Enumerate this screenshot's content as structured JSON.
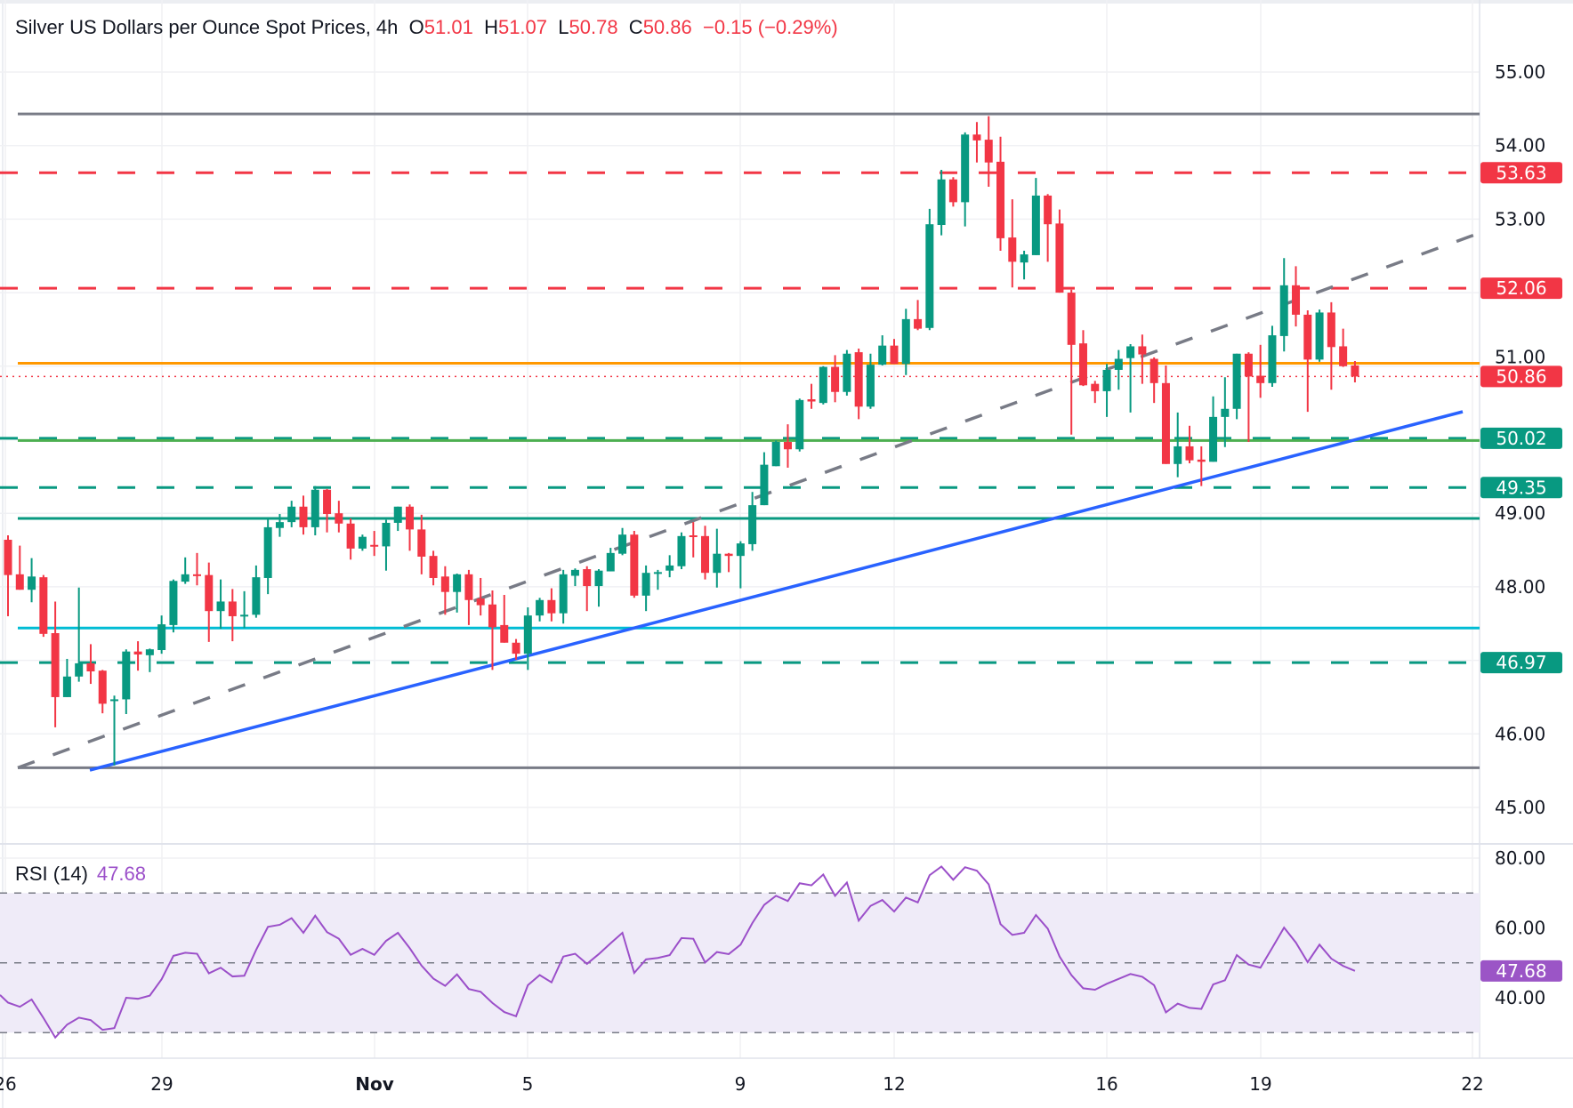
{
  "header": {
    "title": "Silver US Dollars per Ounce Spot Prices, 4h",
    "o_label": "O",
    "o_value": "51.01",
    "h_label": "H",
    "h_value": "51.07",
    "l_label": "L",
    "l_value": "50.78",
    "c_label": "C",
    "c_value": "50.86",
    "change": "−0.15 (−0.29%)"
  },
  "rsi_header": {
    "label": "RSI (14)",
    "value": "47.68"
  },
  "colors": {
    "up": "#089981",
    "down": "#f23645",
    "rsi": "#9b4fc9",
    "rsi_band": "#efebf8",
    "grid": "#f0f1f4",
    "level_gray": "#787b86",
    "orange": "#ff9800",
    "green": "#4caf50",
    "cyan": "#00bcd4",
    "blue": "#2962ff",
    "teal": "#089981"
  },
  "price_axis": [
    "55.00",
    "54.00",
    "53.00",
    "51.00",
    "49.00",
    "48.00",
    "46.00",
    "45.00"
  ],
  "rsi_axis": [
    "80.00",
    "60.00",
    "40.00"
  ],
  "time_axis": [
    "26",
    "29",
    "Nov",
    "5",
    "9",
    "12",
    "16",
    "19",
    "22"
  ],
  "badges": [
    {
      "text": "53.63",
      "color": "#f23645"
    },
    {
      "text": "52.06",
      "color": "#f23645"
    },
    {
      "text": "50.86",
      "color": "#f23645"
    },
    {
      "text": "50.02",
      "color": "#089981"
    },
    {
      "text": "49.35",
      "color": "#089981"
    },
    {
      "text": "46.97",
      "color": "#089981"
    }
  ],
  "rsi_badge": {
    "text": "47.68",
    "color": "#9b55c6"
  },
  "levels": [
    {
      "price": 54.43,
      "color": "#787b86",
      "style": "solid"
    },
    {
      "price": 53.63,
      "color": "#f23645",
      "style": "dashed"
    },
    {
      "price": 52.06,
      "color": "#f23645",
      "style": "dashed"
    },
    {
      "price": 51.04,
      "color": "#ff9800",
      "style": "solid"
    },
    {
      "price": 50.86,
      "color": "#f23645",
      "style": "dotted"
    },
    {
      "price": 50.02,
      "color": "#089981",
      "style": "dashed"
    },
    {
      "price": 49.99,
      "color": "#4caf50",
      "style": "solid"
    },
    {
      "price": 49.35,
      "color": "#089981",
      "style": "dashed"
    },
    {
      "price": 48.93,
      "color": "#089981",
      "style": "solid"
    },
    {
      "price": 47.44,
      "color": "#00bcd4",
      "style": "solid"
    },
    {
      "price": 46.97,
      "color": "#089981",
      "style": "dashed"
    },
    {
      "price": 45.54,
      "color": "#787b86",
      "style": "solid"
    }
  ],
  "rsi_levels": [
    70,
    50,
    30
  ],
  "chart_data": {
    "type": "candlestick",
    "title": "Silver US Dollars per Ounce Spot Prices, 4h",
    "ylim": [
      44.5,
      55.5
    ],
    "rsi_ylim": [
      25,
      82
    ],
    "grid": true,
    "ohlc": [
      [
        48.64,
        48.7,
        47.6,
        48.16
      ],
      [
        48.17,
        48.56,
        47.96,
        47.96
      ],
      [
        47.96,
        48.39,
        47.79,
        48.14
      ],
      [
        48.13,
        48.16,
        47.32,
        47.36
      ],
      [
        47.37,
        47.8,
        46.09,
        46.5
      ],
      [
        46.5,
        47.02,
        46.5,
        46.78
      ],
      [
        46.78,
        47.99,
        46.71,
        46.96
      ],
      [
        46.96,
        47.22,
        46.68,
        46.85
      ],
      [
        46.86,
        46.87,
        46.28,
        46.41
      ],
      [
        46.45,
        46.52,
        45.57,
        46.47
      ],
      [
        46.47,
        47.15,
        46.27,
        47.12
      ],
      [
        47.12,
        47.26,
        46.86,
        47.08
      ],
      [
        47.07,
        47.16,
        46.84,
        47.15
      ],
      [
        47.14,
        47.61,
        47.09,
        47.49
      ],
      [
        47.48,
        48.1,
        47.38,
        48.08
      ],
      [
        48.07,
        48.4,
        48.04,
        48.17
      ],
      [
        48.17,
        48.46,
        48.02,
        48.16
      ],
      [
        48.16,
        48.33,
        47.25,
        47.67
      ],
      [
        47.67,
        48.1,
        47.43,
        47.8
      ],
      [
        47.8,
        47.97,
        47.26,
        47.6
      ],
      [
        47.6,
        47.94,
        47.44,
        47.62
      ],
      [
        47.62,
        48.29,
        47.58,
        48.13
      ],
      [
        48.12,
        48.93,
        47.9,
        48.81
      ],
      [
        48.8,
        48.99,
        48.68,
        48.88
      ],
      [
        48.88,
        49.17,
        48.81,
        49.09
      ],
      [
        49.09,
        49.24,
        48.71,
        48.81
      ],
      [
        48.81,
        49.37,
        48.7,
        49.32
      ],
      [
        49.32,
        49.33,
        48.74,
        48.99
      ],
      [
        49.0,
        49.17,
        48.74,
        48.86
      ],
      [
        48.86,
        48.93,
        48.37,
        48.52
      ],
      [
        48.52,
        48.71,
        48.49,
        48.68
      ],
      [
        48.57,
        48.76,
        48.42,
        48.55
      ],
      [
        48.55,
        48.91,
        48.22,
        48.87
      ],
      [
        48.87,
        49.09,
        48.76,
        49.09
      ],
      [
        49.09,
        49.12,
        48.49,
        48.78
      ],
      [
        48.78,
        48.98,
        48.17,
        48.41
      ],
      [
        48.42,
        48.49,
        48.02,
        48.12
      ],
      [
        48.14,
        48.28,
        47.62,
        47.93
      ],
      [
        47.93,
        48.18,
        47.65,
        48.17
      ],
      [
        48.17,
        48.23,
        47.48,
        47.82
      ],
      [
        47.84,
        48.12,
        47.61,
        47.75
      ],
      [
        47.76,
        47.95,
        46.87,
        47.45
      ],
      [
        47.48,
        47.89,
        47.24,
        47.24
      ],
      [
        47.24,
        47.29,
        47.01,
        47.09
      ],
      [
        47.09,
        47.72,
        46.87,
        47.61
      ],
      [
        47.61,
        47.85,
        47.53,
        47.82
      ],
      [
        47.82,
        47.98,
        47.53,
        47.64
      ],
      [
        47.64,
        48.23,
        47.5,
        48.17
      ],
      [
        48.15,
        48.25,
        48.01,
        48.23
      ],
      [
        48.24,
        48.28,
        47.67,
        48.01
      ],
      [
        48.01,
        48.24,
        47.73,
        48.22
      ],
      [
        48.21,
        48.53,
        48.21,
        48.46
      ],
      [
        48.45,
        48.8,
        48.43,
        48.71
      ],
      [
        48.71,
        48.76,
        47.85,
        47.88
      ],
      [
        47.88,
        48.29,
        47.67,
        48.19
      ],
      [
        48.18,
        48.23,
        47.96,
        48.2
      ],
      [
        48.22,
        48.43,
        48.13,
        48.29
      ],
      [
        48.28,
        48.74,
        48.24,
        48.69
      ],
      [
        48.7,
        48.88,
        48.4,
        48.68
      ],
      [
        48.69,
        48.83,
        48.1,
        48.19
      ],
      [
        48.19,
        48.79,
        47.99,
        48.45
      ],
      [
        48.45,
        48.46,
        48.2,
        48.42
      ],
      [
        48.42,
        48.62,
        47.98,
        48.59
      ],
      [
        48.58,
        49.29,
        48.49,
        49.11
      ],
      [
        49.11,
        49.83,
        49.11,
        49.66
      ],
      [
        49.64,
        49.99,
        49.64,
        49.97
      ],
      [
        49.97,
        50.21,
        49.62,
        49.87
      ],
      [
        49.87,
        50.56,
        49.84,
        50.54
      ],
      [
        50.55,
        50.76,
        50.42,
        50.52
      ],
      [
        50.5,
        51.0,
        50.48,
        50.99
      ],
      [
        50.99,
        51.15,
        50.51,
        50.65
      ],
      [
        50.65,
        51.22,
        50.6,
        51.17
      ],
      [
        51.19,
        51.24,
        50.28,
        50.45
      ],
      [
        50.45,
        51.17,
        50.42,
        51.02
      ],
      [
        51.02,
        51.42,
        51.01,
        51.28
      ],
      [
        51.28,
        51.37,
        51.03,
        51.03
      ],
      [
        51.03,
        51.78,
        50.88,
        51.64
      ],
      [
        51.64,
        51.9,
        51.49,
        51.51
      ],
      [
        51.52,
        53.14,
        51.49,
        52.93
      ],
      [
        52.92,
        53.67,
        52.78,
        53.54
      ],
      [
        53.54,
        53.57,
        53.17,
        53.23
      ],
      [
        53.23,
        54.18,
        52.9,
        54.15
      ],
      [
        54.15,
        54.32,
        53.77,
        54.07
      ],
      [
        54.08,
        54.4,
        53.44,
        53.77
      ],
      [
        53.78,
        54.12,
        52.57,
        52.74
      ],
      [
        52.75,
        53.27,
        52.07,
        52.42
      ],
      [
        52.41,
        52.57,
        52.18,
        52.52
      ],
      [
        52.51,
        53.56,
        52.51,
        53.32
      ],
      [
        53.32,
        53.34,
        52.42,
        52.93
      ],
      [
        52.94,
        53.13,
        52.0,
        52.0
      ],
      [
        52.0,
        52.04,
        50.07,
        51.29
      ],
      [
        51.31,
        51.49,
        50.73,
        50.74
      ],
      [
        50.76,
        50.8,
        50.5,
        50.66
      ],
      [
        50.66,
        51.03,
        50.31,
        50.95
      ],
      [
        50.95,
        51.22,
        50.68,
        51.1
      ],
      [
        51.11,
        51.3,
        50.37,
        51.27
      ],
      [
        51.27,
        51.43,
        50.76,
        51.16
      ],
      [
        51.1,
        51.12,
        50.5,
        50.77
      ],
      [
        50.77,
        51.01,
        49.67,
        49.67
      ],
      [
        49.67,
        50.37,
        49.49,
        49.91
      ],
      [
        49.91,
        50.19,
        49.68,
        49.72
      ],
      [
        49.73,
        49.91,
        49.37,
        49.7
      ],
      [
        49.7,
        50.59,
        49.7,
        50.31
      ],
      [
        50.31,
        50.85,
        49.9,
        50.42
      ],
      [
        50.42,
        51.17,
        50.28,
        51.17
      ],
      [
        51.17,
        51.19,
        49.97,
        50.86
      ],
      [
        50.87,
        51.29,
        50.57,
        50.77
      ],
      [
        50.77,
        51.55,
        50.72,
        51.42
      ],
      [
        51.41,
        52.47,
        51.2,
        52.1
      ],
      [
        52.1,
        52.36,
        51.54,
        51.7
      ],
      [
        51.7,
        51.76,
        50.38,
        51.09
      ],
      [
        51.09,
        51.77,
        51.06,
        51.73
      ],
      [
        51.73,
        51.87,
        50.68,
        51.26
      ],
      [
        51.27,
        51.51,
        50.99,
        51.0
      ],
      [
        51.01,
        51.07,
        50.78,
        50.86
      ]
    ],
    "rsi": [
      38.6,
      37.4,
      39.5,
      34.2,
      28.6,
      32.3,
      34.3,
      33.6,
      30.8,
      31.3,
      40.0,
      39.7,
      40.6,
      45.3,
      52.0,
      52.9,
      52.6,
      47.0,
      48.6,
      46.1,
      46.3,
      53.7,
      60.3,
      60.9,
      62.8,
      58.6,
      63.5,
      58.8,
      56.9,
      52.3,
      54.0,
      52.3,
      56.3,
      58.6,
      54.2,
      49.2,
      45.5,
      43.4,
      46.7,
      42.5,
      41.7,
      38.5,
      35.9,
      34.7,
      43.6,
      46.5,
      44.4,
      51.8,
      52.6,
      49.7,
      52.5,
      55.6,
      58.6,
      47.1,
      51.0,
      51.4,
      52.2,
      57.1,
      56.9,
      50.1,
      53.1,
      52.5,
      55.2,
      61.4,
      66.6,
      69.2,
      67.7,
      72.8,
      72.2,
      75.3,
      69.2,
      73.0,
      62.1,
      66.3,
      68.0,
      64.7,
      68.7,
      67.3,
      75.1,
      77.6,
      73.8,
      77.4,
      76.4,
      72.5,
      61.1,
      58.0,
      58.6,
      63.7,
      59.8,
      51.8,
      46.5,
      42.7,
      42.3,
      44.0,
      45.4,
      46.8,
      46.0,
      43.6,
      35.8,
      38.3,
      37.1,
      36.8,
      43.8,
      45.0,
      52.2,
      49.5,
      48.6,
      54.3,
      60.1,
      55.8,
      50.2,
      55.2,
      51.2,
      49.1,
      47.68
    ]
  }
}
